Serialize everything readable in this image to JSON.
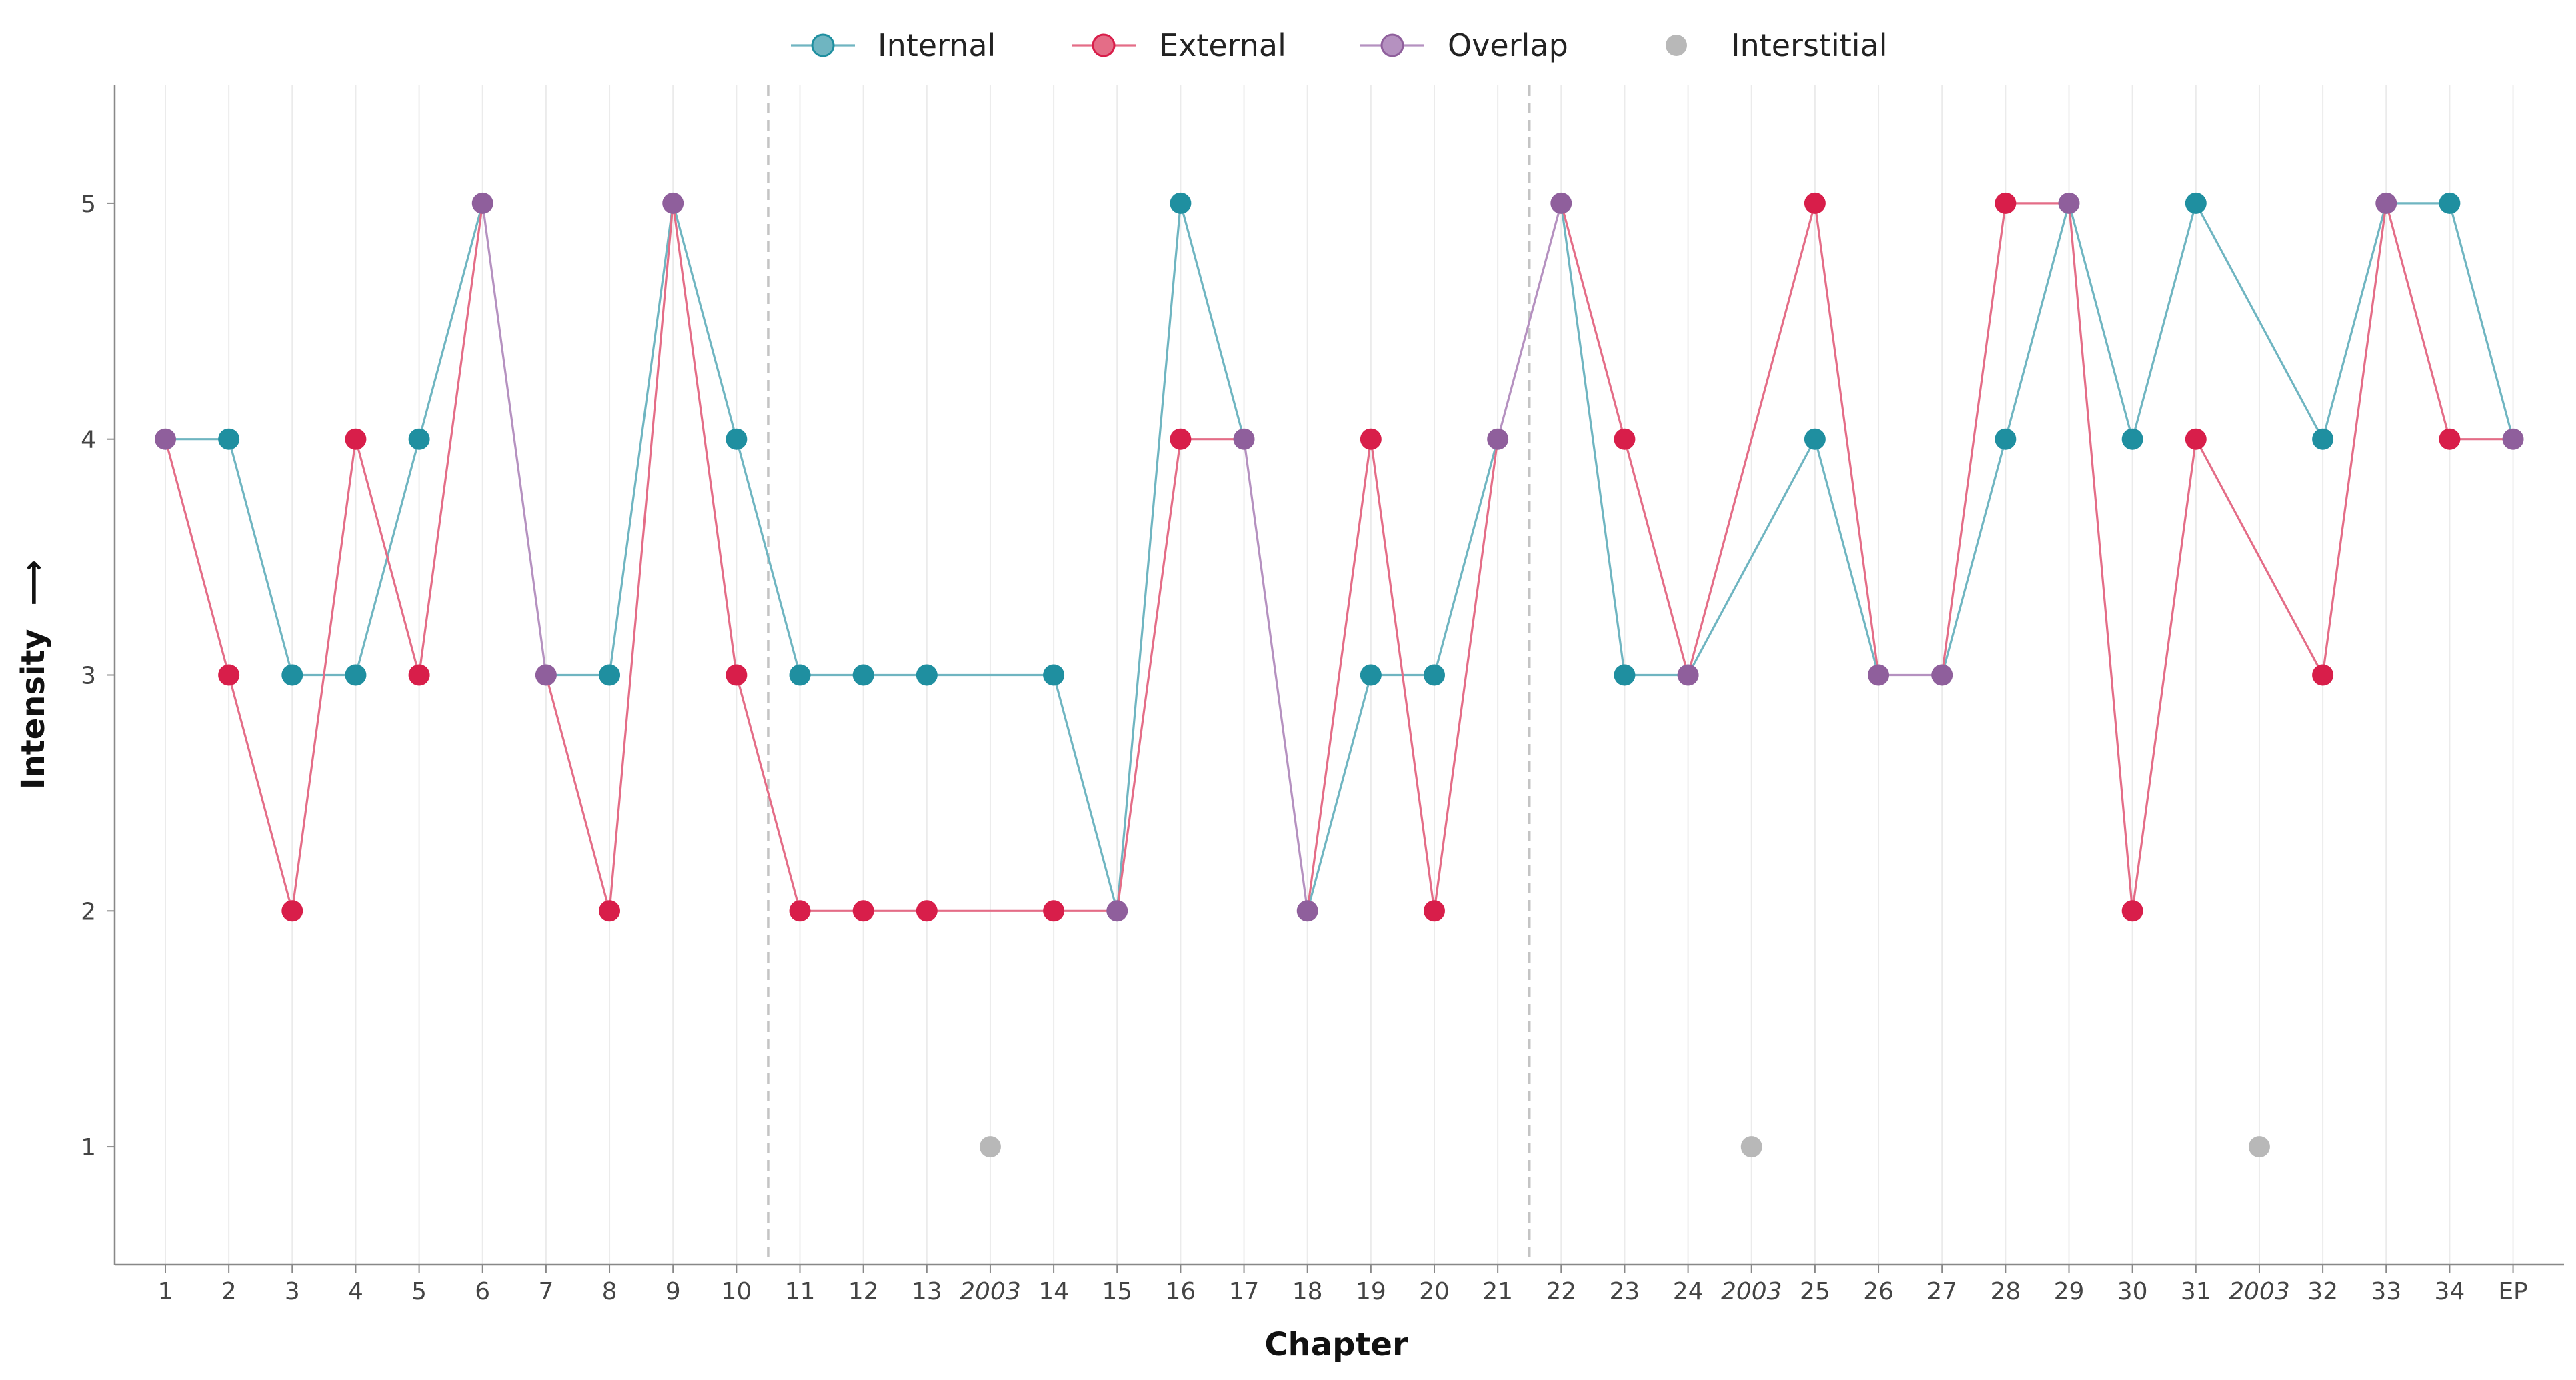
{
  "chart_data": {
    "type": "line",
    "xlabel": "Chapter",
    "ylabel": "Intensity",
    "ylabel_arrow": "⟶",
    "ylim": [
      0.5,
      5.5
    ],
    "yticks": [
      1,
      2,
      3,
      4,
      5
    ],
    "grid": "vertical",
    "legend_position": "top-center",
    "categories": [
      "1",
      "2",
      "3",
      "4",
      "5",
      "6",
      "7",
      "8",
      "9",
      "10",
      "11",
      "12",
      "13",
      "2003",
      "14",
      "15",
      "16",
      "17",
      "18",
      "19",
      "20",
      "21",
      "22",
      "23",
      "24",
      "2003",
      "25",
      "26",
      "27",
      "28",
      "29",
      "30",
      "31",
      "2003",
      "32",
      "33",
      "34",
      "EP"
    ],
    "italic_categories": [
      13,
      25,
      33
    ],
    "part_dividers_after": [
      9,
      21
    ],
    "legend": [
      {
        "key": "internal",
        "label": "Internal"
      },
      {
        "key": "external",
        "label": "External"
      },
      {
        "key": "overlap",
        "label": "Overlap"
      },
      {
        "key": "interstitial",
        "label": "Interstitial"
      }
    ],
    "colors": {
      "internal": "#1f8fa0",
      "external": "#d81e4a",
      "overlap": "#8f5f9c",
      "interstitial": "#b8b8b8"
    },
    "series": [
      {
        "name": "Internal",
        "key": "internal",
        "values": [
          4,
          4,
          3,
          3,
          4,
          5,
          3,
          3,
          5,
          4,
          3,
          3,
          3,
          null,
          3,
          2,
          5,
          4,
          2,
          3,
          3,
          4,
          5,
          3,
          3,
          null,
          4,
          3,
          3,
          4,
          5,
          4,
          5,
          null,
          4,
          5,
          5,
          4
        ]
      },
      {
        "name": "External",
        "key": "external",
        "values": [
          4,
          3,
          2,
          4,
          3,
          5,
          3,
          2,
          5,
          3,
          2,
          2,
          2,
          null,
          2,
          2,
          4,
          4,
          2,
          4,
          2,
          4,
          5,
          4,
          3,
          null,
          5,
          3,
          3,
          5,
          5,
          2,
          4,
          null,
          3,
          5,
          4,
          4
        ]
      }
    ],
    "interstitial_points": [
      {
        "category_index": 13,
        "value": 1
      },
      {
        "category_index": 25,
        "value": 1
      },
      {
        "category_index": 33,
        "value": 1
      }
    ]
  }
}
